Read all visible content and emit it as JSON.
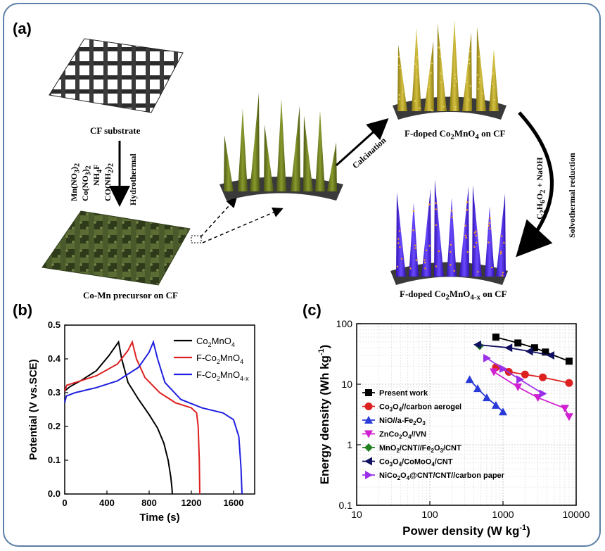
{
  "panel_a": {
    "label": "(a)",
    "cf_substrate": "CF substrate",
    "reagents": [
      "Mn(NO",
      ")",
      "2",
      "Co(NO",
      ")",
      "2",
      "NH",
      "F",
      "CO(NH",
      ")",
      "2"
    ],
    "hydrothermal": "Hydrothermal",
    "precursor": "Co-Mn precursor on CF",
    "calcination": "Calcination",
    "fdoped_prefix": "F-doped Co",
    "fdoped_mid": "MnO",
    "fdoped_sub4": "4",
    "fdoped_sub4x": "4-x",
    "fdoped_sub2": "2",
    "on_cf": " on CF",
    "solvothermal": "Solvothermal reduction",
    "reductant": "C",
    "reductant_mid": "H",
    "reductant_end": "O",
    "reductant_plus": " + NaOH",
    "colors": {
      "nanowire_green": "#6b7a1e",
      "nanowire_gold": "#b8a020",
      "nanowire_blue": "#4a2ad8",
      "substrate": "#3a3a3a",
      "precursor": "#4a5a2a"
    }
  },
  "panel_b": {
    "label": "(b)"
  },
  "panel_c": {
    "label": "(c)"
  },
  "chart_data": [
    {
      "type": "line",
      "xlabel": "Time (s)",
      "ylabel": "Potential (V vs.SCE)",
      "xlim": [
        0,
        1800
      ],
      "ylim": [
        0.0,
        0.5
      ],
      "xticks": [
        "0",
        "400",
        "800",
        "1200",
        "1600"
      ],
      "xtick_values": [
        0,
        400,
        800,
        1200,
        1600
      ],
      "yticks": [
        "0.0",
        "0.1",
        "0.2",
        "0.3",
        "0.4",
        "0.5"
      ],
      "ytick_values": [
        0.0,
        0.1,
        0.2,
        0.3,
        0.4,
        0.5
      ],
      "legend_placement": "top-right",
      "series": [
        {
          "name": "Co2MnO4",
          "label_main": "Co",
          "label_sub1": "2",
          "label_mid": "MnO",
          "label_sub2": "4",
          "color": "#000000",
          "x": [
            0,
            50,
            150,
            300,
            420,
            510,
            540,
            600,
            700,
            800,
            880,
            940,
            980,
            1005,
            1015,
            1020
          ],
          "y": [
            0.305,
            0.318,
            0.335,
            0.365,
            0.41,
            0.45,
            0.4,
            0.33,
            0.28,
            0.235,
            0.195,
            0.15,
            0.1,
            0.05,
            0.02,
            0.0
          ]
        },
        {
          "name": "F-Co2MnO4",
          "label_main": "F-Co",
          "label_sub1": "2",
          "label_mid": "MnO",
          "label_sub2": "4",
          "color": "#dd2020",
          "x": [
            0,
            20,
            100,
            300,
            500,
            600,
            640,
            680,
            760,
            900,
            1050,
            1200,
            1250,
            1265,
            1275,
            1280
          ],
          "y": [
            0.305,
            0.322,
            0.33,
            0.35,
            0.385,
            0.425,
            0.45,
            0.4,
            0.345,
            0.3,
            0.27,
            0.255,
            0.24,
            0.2,
            0.1,
            0.0
          ]
        },
        {
          "name": "F-Co2MnO4-x",
          "label_main": "F-Co",
          "label_sub1": "2",
          "label_mid": "MnO",
          "label_sub2": "4-x",
          "color": "#2020e0",
          "x": [
            0,
            15,
            100,
            300,
            500,
            700,
            800,
            840,
            880,
            950,
            1100,
            1300,
            1500,
            1600,
            1650,
            1670,
            1680
          ],
          "y": [
            0.27,
            0.29,
            0.3,
            0.315,
            0.335,
            0.375,
            0.42,
            0.45,
            0.4,
            0.33,
            0.28,
            0.255,
            0.24,
            0.22,
            0.17,
            0.08,
            0.0
          ]
        }
      ]
    },
    {
      "type": "line",
      "xlabel": "Power density (W kg",
      "xlabel_sup": "-1",
      "xlabel_end": ")",
      "ylabel": "Energy density (Wh kg",
      "ylabel_sup": "-1",
      "ylabel_end": ")",
      "scale": "log-log",
      "xlim": [
        10,
        10000
      ],
      "ylim": [
        0.1,
        100
      ],
      "xticks": [
        "10",
        "100",
        "1000",
        "10000"
      ],
      "xtick_values": [
        10,
        100,
        1000,
        10000
      ],
      "yticks": [
        "0.1",
        "1",
        "10",
        "100"
      ],
      "ytick_values": [
        0.1,
        1,
        10,
        100
      ],
      "grid": true,
      "legend_placement": "bottom-left",
      "series": [
        {
          "name": "Present work",
          "color": "#000000",
          "marker": "square",
          "x": [
            800,
            1600,
            2700,
            3800,
            8000
          ],
          "y": [
            60,
            48,
            40,
            34,
            24
          ]
        },
        {
          "name": "Co3O4//carbon aerogel",
          "parts": [
            "Co",
            "3",
            "O",
            "4",
            "//carbon aerogel"
          ],
          "color": "#dd2020",
          "marker": "circle",
          "x": [
            800,
            1200,
            2000,
            3500,
            8000
          ],
          "y": [
            19,
            16,
            14.5,
            13,
            10.5
          ]
        },
        {
          "name": "NiO//a-Fe2O3",
          "parts": [
            "NiO//a-Fe",
            "2",
            "O",
            "3",
            ""
          ],
          "color": "#2a3ad8",
          "marker": "triangle-up",
          "x": [
            350,
            450,
            600,
            800,
            1000
          ],
          "y": [
            12,
            8.5,
            6,
            4.5,
            3.5
          ]
        },
        {
          "name": "ZnCo2O4//VN",
          "parts": [
            "ZnCo",
            "2",
            "O",
            "4",
            "//VN"
          ],
          "color": "#d020d0",
          "marker": "triangle-down",
          "x": [
            750,
            1600,
            3000,
            7000,
            8000
          ],
          "y": [
            16,
            9,
            6,
            4,
            2.9
          ]
        },
        {
          "name": "MnO2/CNT//Fe2O3/CNT",
          "parts": [
            "MnO",
            "2",
            "/CNT//Fe",
            "2",
            "O",
            "3",
            "/CNT"
          ],
          "color": "#208020",
          "marker": "diamond",
          "x": [
            480
          ],
          "y": [
            43
          ]
        },
        {
          "name": "Co3O4/CoMoO4/CNT",
          "parts": [
            "Co",
            "3",
            "O",
            "4",
            "/CoMoO",
            "4",
            "/CNT"
          ],
          "color": "#101060",
          "marker": "triangle-left",
          "x": [
            450,
            1200,
            2300,
            4500
          ],
          "y": [
            45,
            40,
            35,
            30
          ]
        },
        {
          "name": "NiCo2O4@CNT/CNT//carbon paper",
          "parts": [
            "NiCo",
            "2",
            "O",
            "4",
            "@CNT/CNT//carbon paper"
          ],
          "color": "#9a30e8",
          "marker": "triangle-right",
          "x": [
            600,
            1000,
            1700,
            3500
          ],
          "y": [
            27,
            18,
            12,
            7
          ]
        }
      ]
    }
  ]
}
